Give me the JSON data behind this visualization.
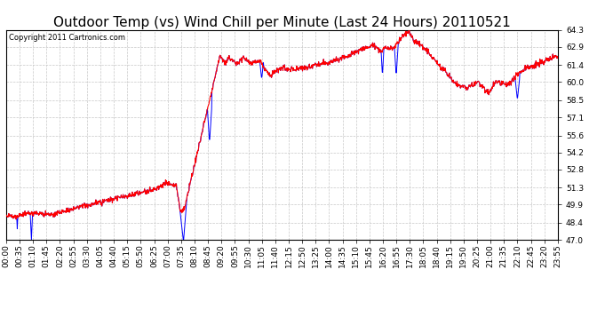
{
  "title": "Outdoor Temp (vs) Wind Chill per Minute (Last 24 Hours) 20110521",
  "copyright": "Copyright 2011 Cartronics.com",
  "ylim": [
    47.0,
    64.3
  ],
  "yticks": [
    47.0,
    48.4,
    49.9,
    51.3,
    52.8,
    54.2,
    55.6,
    57.1,
    58.5,
    60.0,
    61.4,
    62.9,
    64.3
  ],
  "background_color": "#ffffff",
  "grid_color": "#c8c8c8",
  "line_color_red": "#ff0000",
  "line_color_blue": "#0000ff",
  "title_fontsize": 11,
  "tick_fontsize": 6.5,
  "copyright_fontsize": 6,
  "xlabel_rotation": 90,
  "xtick_labels": [
    "00:00",
    "00:35",
    "01:10",
    "01:45",
    "02:20",
    "02:55",
    "03:30",
    "04:05",
    "04:40",
    "05:15",
    "05:50",
    "06:25",
    "07:00",
    "07:35",
    "08:10",
    "08:45",
    "09:20",
    "09:55",
    "10:30",
    "11:05",
    "11:40",
    "12:15",
    "12:50",
    "13:25",
    "14:00",
    "14:35",
    "15:10",
    "15:45",
    "16:20",
    "16:55",
    "17:30",
    "18:05",
    "18:40",
    "19:15",
    "19:50",
    "20:25",
    "21:00",
    "21:35",
    "22:10",
    "22:45",
    "23:20",
    "23:55"
  ]
}
